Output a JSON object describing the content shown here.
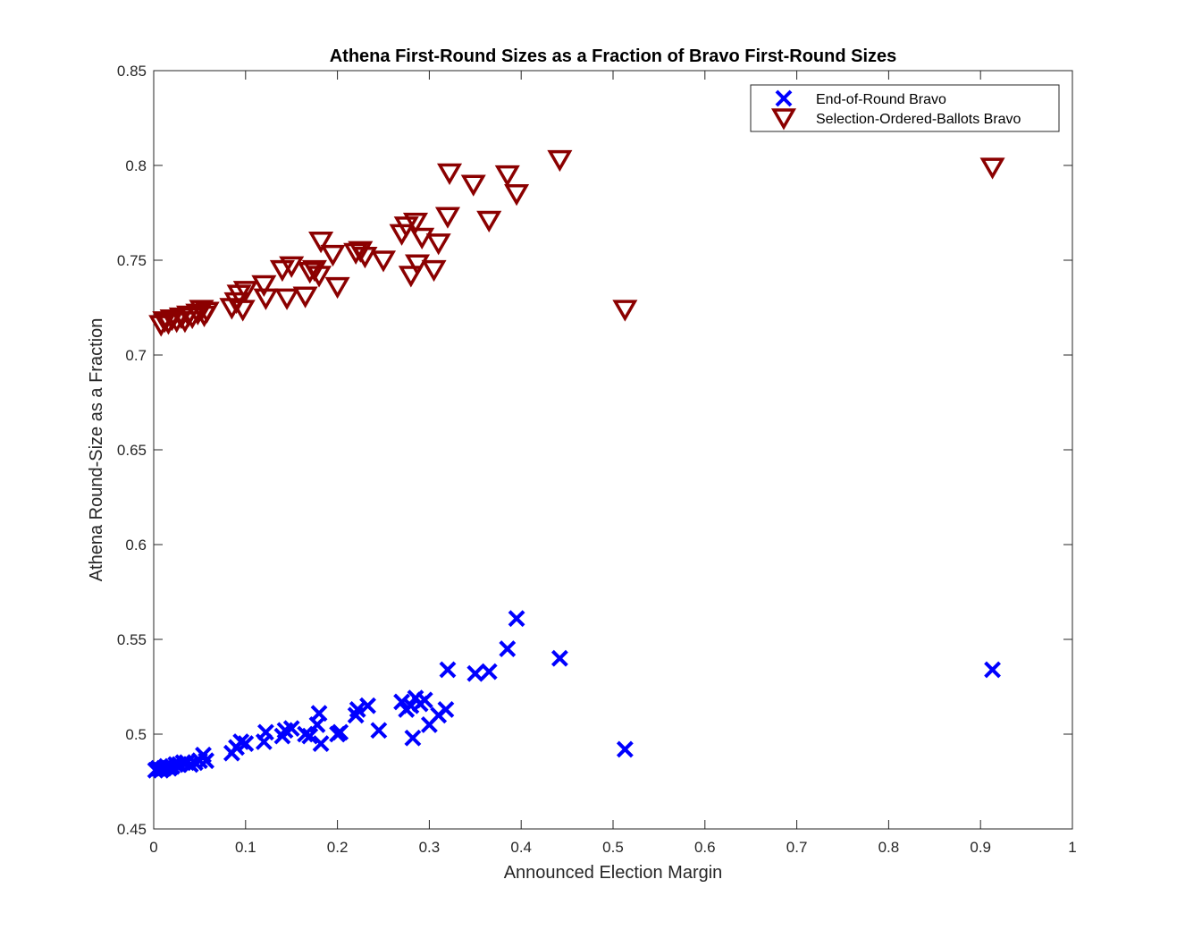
{
  "chart_data": {
    "type": "scatter",
    "title": "Athena First-Round Sizes as a Fraction of Bravo First-Round Sizes",
    "xlabel": "Announced Election Margin",
    "ylabel": "Athena Round-Size as a Fraction",
    "xlim": [
      0,
      1
    ],
    "ylim": [
      0.45,
      0.85
    ],
    "x_ticks": [
      "0",
      "0.1",
      "0.2",
      "0.3",
      "0.4",
      "0.5",
      "0.6",
      "0.7",
      "0.8",
      "0.9",
      "1"
    ],
    "y_ticks": [
      "0.45",
      "0.5",
      "0.55",
      "0.6",
      "0.65",
      "0.7",
      "0.75",
      "0.8",
      "0.85"
    ],
    "grid": false,
    "legend_position": "top-right",
    "series": [
      {
        "name": "End-of-Round Bravo",
        "marker": "x",
        "color": "#0000ff",
        "points": [
          [
            0.002,
            0.481
          ],
          [
            0.005,
            0.482
          ],
          [
            0.008,
            0.481
          ],
          [
            0.011,
            0.482
          ],
          [
            0.014,
            0.483
          ],
          [
            0.017,
            0.482
          ],
          [
            0.02,
            0.483
          ],
          [
            0.024,
            0.484
          ],
          [
            0.028,
            0.484
          ],
          [
            0.032,
            0.485
          ],
          [
            0.036,
            0.485
          ],
          [
            0.04,
            0.484
          ],
          [
            0.045,
            0.485
          ],
          [
            0.05,
            0.486
          ],
          [
            0.054,
            0.489
          ],
          [
            0.057,
            0.486
          ],
          [
            0.085,
            0.49
          ],
          [
            0.09,
            0.493
          ],
          [
            0.095,
            0.496
          ],
          [
            0.1,
            0.495
          ],
          [
            0.12,
            0.496
          ],
          [
            0.122,
            0.501
          ],
          [
            0.14,
            0.499
          ],
          [
            0.143,
            0.502
          ],
          [
            0.15,
            0.503
          ],
          [
            0.165,
            0.5
          ],
          [
            0.17,
            0.499
          ],
          [
            0.178,
            0.505
          ],
          [
            0.18,
            0.511
          ],
          [
            0.182,
            0.495
          ],
          [
            0.2,
            0.5
          ],
          [
            0.203,
            0.501
          ],
          [
            0.22,
            0.51
          ],
          [
            0.222,
            0.513
          ],
          [
            0.233,
            0.515
          ],
          [
            0.245,
            0.502
          ],
          [
            0.27,
            0.517
          ],
          [
            0.275,
            0.513
          ],
          [
            0.28,
            0.515
          ],
          [
            0.282,
            0.498
          ],
          [
            0.285,
            0.519
          ],
          [
            0.29,
            0.516
          ],
          [
            0.295,
            0.518
          ],
          [
            0.3,
            0.505
          ],
          [
            0.31,
            0.51
          ],
          [
            0.318,
            0.513
          ],
          [
            0.32,
            0.534
          ],
          [
            0.35,
            0.532
          ],
          [
            0.365,
            0.533
          ],
          [
            0.385,
            0.545
          ],
          [
            0.395,
            0.561
          ],
          [
            0.442,
            0.54
          ],
          [
            0.513,
            0.492
          ],
          [
            0.913,
            0.534
          ]
        ]
      },
      {
        "name": "Selection-Ordered-Ballots Bravo",
        "marker": "triangle-down",
        "color": "#8b0000",
        "points": [
          [
            0.008,
            0.716
          ],
          [
            0.012,
            0.718
          ],
          [
            0.016,
            0.717
          ],
          [
            0.02,
            0.719
          ],
          [
            0.025,
            0.718
          ],
          [
            0.03,
            0.72
          ],
          [
            0.034,
            0.718
          ],
          [
            0.038,
            0.721
          ],
          [
            0.042,
            0.72
          ],
          [
            0.048,
            0.722
          ],
          [
            0.052,
            0.724
          ],
          [
            0.055,
            0.721
          ],
          [
            0.058,
            0.723
          ],
          [
            0.085,
            0.725
          ],
          [
            0.09,
            0.728
          ],
          [
            0.093,
            0.732
          ],
          [
            0.097,
            0.724
          ],
          [
            0.1,
            0.734
          ],
          [
            0.12,
            0.737
          ],
          [
            0.122,
            0.73
          ],
          [
            0.14,
            0.745
          ],
          [
            0.145,
            0.73
          ],
          [
            0.15,
            0.747
          ],
          [
            0.165,
            0.731
          ],
          [
            0.17,
            0.744
          ],
          [
            0.175,
            0.745
          ],
          [
            0.18,
            0.742
          ],
          [
            0.182,
            0.76
          ],
          [
            0.195,
            0.753
          ],
          [
            0.2,
            0.736
          ],
          [
            0.22,
            0.754
          ],
          [
            0.225,
            0.755
          ],
          [
            0.23,
            0.752
          ],
          [
            0.25,
            0.75
          ],
          [
            0.27,
            0.764
          ],
          [
            0.275,
            0.768
          ],
          [
            0.28,
            0.742
          ],
          [
            0.285,
            0.77
          ],
          [
            0.287,
            0.748
          ],
          [
            0.292,
            0.762
          ],
          [
            0.305,
            0.745
          ],
          [
            0.31,
            0.759
          ],
          [
            0.32,
            0.773
          ],
          [
            0.322,
            0.796
          ],
          [
            0.348,
            0.79
          ],
          [
            0.365,
            0.771
          ],
          [
            0.385,
            0.795
          ],
          [
            0.395,
            0.785
          ],
          [
            0.442,
            0.803
          ],
          [
            0.513,
            0.724
          ],
          [
            0.913,
            0.799
          ]
        ]
      }
    ]
  }
}
